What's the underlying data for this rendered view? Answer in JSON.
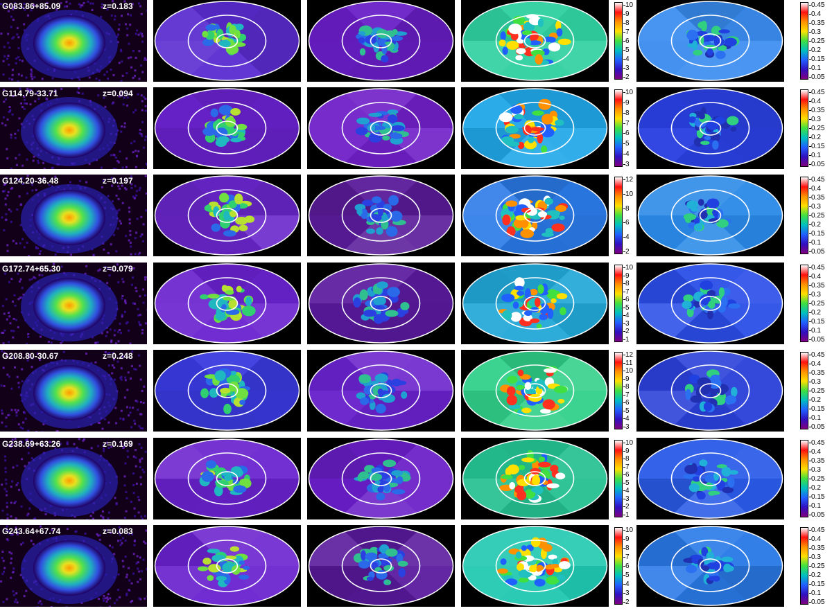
{
  "colors": {
    "background_ring": "#7a1fd6",
    "white_contour": "#ffffff",
    "panel_bg": "#000000"
  },
  "columns": [
    "x-ray-image",
    "surface-brightness-map",
    "density-map",
    "temperature-map",
    "abundance-map"
  ],
  "rows": [
    {
      "name": "G083.86+85.09",
      "z": "z=0.183",
      "temp_ticks": [
        "10",
        "9",
        "8",
        "7",
        "6",
        "5",
        "4",
        "3",
        "2"
      ],
      "abund_ticks": [
        "0.45",
        "0.4",
        "0.35",
        "0.3",
        "0.25",
        "0.2",
        "0.15",
        "0.1",
        "0.05"
      ],
      "maps": {
        "sb": "#5a2cd0",
        "dens": "#6a1ec8",
        "temp": "#2fd0a0",
        "abund": "#3a8cf0"
      }
    },
    {
      "name": "G114.79-33.71",
      "z": "z=0.094",
      "temp_ticks": [
        "10",
        "9",
        "8",
        "7",
        "6",
        "5",
        "4",
        "3"
      ],
      "abund_ticks": [
        "0.45",
        "0.4",
        "0.35",
        "0.3",
        "0.25",
        "0.2",
        "0.15",
        "0.1",
        "0.05"
      ],
      "maps": {
        "sb": "#6a22cf",
        "dens": "#7020c8",
        "temp": "#20a8e8",
        "abund": "#2a40e0"
      }
    },
    {
      "name": "G124.20-36.48",
      "z": "z=0.197",
      "temp_ticks": [
        "12",
        "10",
        "8",
        "6",
        "4",
        "2"
      ],
      "abund_ticks": [
        "0.45",
        "0.4",
        "0.35",
        "0.3",
        "0.25",
        "0.2",
        "0.15",
        "0.1",
        "0.05"
      ],
      "maps": {
        "sb": "#6a26cc",
        "dens": "#5a1c9a",
        "temp": "#2a7ae8",
        "abund": "#2a8ae8"
      }
    },
    {
      "name": "G172.74+65.30",
      "z": "z=0.079",
      "temp_ticks": [
        "10",
        "9",
        "8",
        "7",
        "6",
        "5",
        "4",
        "3",
        "2",
        "1"
      ],
      "abund_ticks": [
        "0.45",
        "0.4",
        "0.35",
        "0.3",
        "0.25",
        "0.2",
        "0.15",
        "0.1",
        "0.05"
      ],
      "maps": {
        "sb": "#6a22cf",
        "dens": "#5a1a9e",
        "temp": "#22a8d8",
        "abund": "#2a4ee8"
      }
    },
    {
      "name": "G208.80-30.67",
      "z": "z=0.248",
      "temp_ticks": [
        "12",
        "11",
        "10",
        "9",
        "8",
        "7",
        "6",
        "5",
        "4",
        "3"
      ],
      "abund_ticks": [
        "0.45",
        "0.4",
        "0.35",
        "0.3",
        "0.25",
        "0.2",
        "0.15",
        "0.1",
        "0.05"
      ],
      "maps": {
        "sb": "#3a3ae0",
        "dens": "#6a22cc",
        "temp": "#30d088",
        "abund": "#2a40d8"
      }
    },
    {
      "name": "G238.69+63.26",
      "z": "z=0.169",
      "temp_ticks": [
        "10",
        "9",
        "8",
        "7",
        "6",
        "5",
        "4",
        "3",
        "2",
        "1"
      ],
      "abund_ticks": [
        "0.45",
        "0.4",
        "0.35",
        "0.3",
        "0.25",
        "0.2",
        "0.15",
        "0.1",
        "0.05"
      ],
      "maps": {
        "sb": "#6a22cf",
        "dens": "#6a1ec8",
        "temp": "#24c090",
        "abund": "#2a5ae8"
      }
    },
    {
      "name": "G243.64+67.74",
      "z": "z=0.083",
      "temp_ticks": [
        "10",
        "9",
        "8",
        "7",
        "6",
        "5",
        "4",
        "3",
        "2"
      ],
      "abund_ticks": [
        "0.45",
        "0.4",
        "0.35",
        "0.3",
        "0.25",
        "0.2",
        "0.15",
        "0.1",
        "0.05"
      ],
      "maps": {
        "sb": "#6a22cf",
        "dens": "#5a1a9e",
        "temp": "#1fc8b0",
        "abund": "#2a7ae8"
      }
    }
  ],
  "colorbar_gradient": [
    "#ffffff",
    "#ff1010",
    "#ff9000",
    "#ffe000",
    "#40e040",
    "#00c0c0",
    "#2060ff",
    "#3010c0",
    "#800080"
  ]
}
